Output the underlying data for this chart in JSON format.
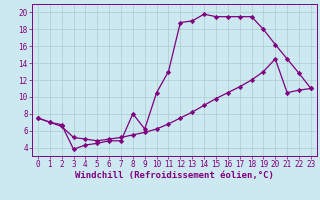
{
  "xlabel": "Windchill (Refroidissement éolien,°C)",
  "bg_color": "#cce8f0",
  "line_color": "#800080",
  "xmin": -0.5,
  "xmax": 23.5,
  "ymin": 3.0,
  "ymax": 21.0,
  "yticks": [
    4,
    6,
    8,
    10,
    12,
    14,
    16,
    18,
    20
  ],
  "xticks": [
    0,
    1,
    2,
    3,
    4,
    5,
    6,
    7,
    8,
    9,
    10,
    11,
    12,
    13,
    14,
    15,
    16,
    17,
    18,
    19,
    20,
    21,
    22,
    23
  ],
  "curve1_x": [
    0,
    1,
    2,
    3,
    4,
    5,
    6,
    7,
    8,
    9,
    10,
    11,
    12,
    13,
    14,
    15,
    16,
    17,
    18,
    19,
    20,
    21,
    22,
    23
  ],
  "curve1_y": [
    7.5,
    7.0,
    6.7,
    3.8,
    4.3,
    4.5,
    4.8,
    4.8,
    8.0,
    6.2,
    10.5,
    13.0,
    18.8,
    19.0,
    19.8,
    19.5,
    19.5,
    19.5,
    19.5,
    18.0,
    16.2,
    14.5,
    12.8,
    11.0
  ],
  "curve2_x": [
    0,
    1,
    2,
    3,
    4,
    5,
    6,
    7,
    8,
    9,
    10,
    11,
    12,
    13,
    14,
    15,
    16,
    17,
    18,
    19,
    20,
    21,
    22,
    23
  ],
  "curve2_y": [
    7.5,
    7.0,
    6.5,
    5.2,
    5.0,
    4.8,
    5.0,
    5.2,
    5.5,
    5.8,
    6.2,
    6.8,
    7.5,
    8.2,
    9.0,
    9.8,
    10.5,
    11.2,
    12.0,
    13.0,
    14.5,
    10.5,
    10.8,
    11.0
  ],
  "grid_color": "#aacccc",
  "marker": "D",
  "markersize": 2.2,
  "linewidth": 0.9,
  "xlabel_fontsize": 6.5,
  "tick_fontsize": 5.5,
  "font_family": "monospace"
}
